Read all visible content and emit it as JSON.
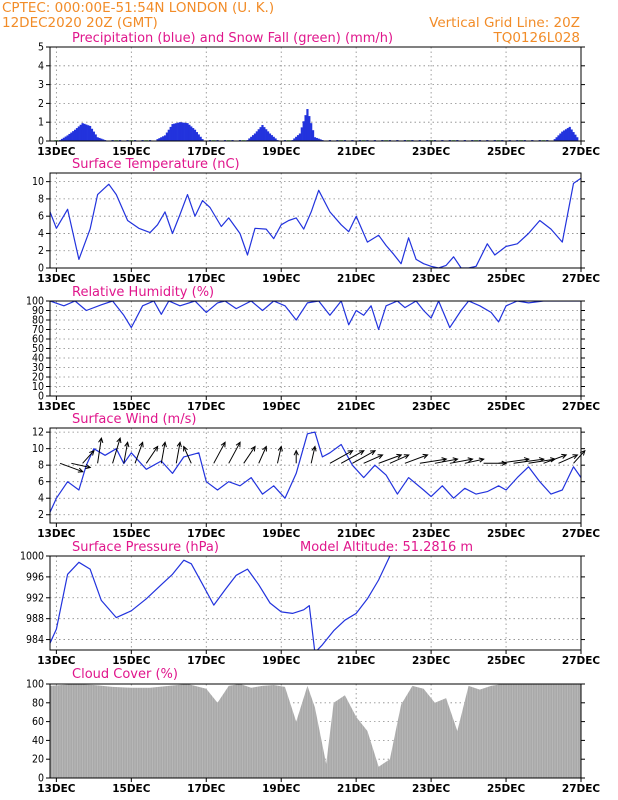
{
  "header": {
    "line1": "CPTEC:   000:00E-51:54N   LONDON (U. K.)",
    "line2": "12DEC2020 20Z (GMT)",
    "grid_note": "Vertical Grid Line: 20Z",
    "model_id": "TQ0126L028"
  },
  "colors": {
    "orange": "#f28c28",
    "magenta": "#e0168c",
    "blue": "#2233dd",
    "green": "#22aa22",
    "gray": "#a9a9a9"
  },
  "time_axis": {
    "start_day": 12.83,
    "end_day": 27.0,
    "ticks": [
      13,
      15,
      17,
      19,
      21,
      23,
      25,
      27
    ],
    "tick_labels": [
      "13DEC",
      "15DEC",
      "17DEC",
      "19DEC",
      "21DEC",
      "23DEC",
      "25DEC",
      "27DEC"
    ]
  },
  "chart_data": [
    {
      "type": "bar",
      "title": "Precipitation (blue) and Snow Fall (green) (mm/h)",
      "ylim": [
        0,
        5
      ],
      "yticks": [
        0,
        1,
        2,
        3,
        4,
        5
      ],
      "series": [
        {
          "name": "Precipitation",
          "color": "#2233dd",
          "x": [
            13.1,
            13.3,
            13.5,
            13.7,
            13.9,
            14.1,
            14.3,
            14.5,
            14.7,
            14.9,
            15.1,
            15.3,
            15.5,
            15.7,
            15.9,
            16.1,
            16.3,
            16.5,
            16.7,
            16.9,
            17.1,
            17.3,
            17.5,
            17.7,
            17.9,
            18.1,
            18.3,
            18.5,
            18.7,
            18.9,
            19.1,
            19.3,
            19.5,
            19.7,
            19.9,
            20.1,
            20.3,
            20.5,
            20.7,
            20.9,
            21.1,
            21.3,
            21.5,
            21.7,
            21.9,
            22.1,
            22.3,
            22.5,
            22.7,
            22.9,
            23.1,
            23.3,
            23.5,
            23.7,
            23.9,
            24.1,
            24.3,
            24.5,
            24.7,
            24.9,
            25.1,
            25.3,
            25.5,
            25.7,
            25.9,
            26.1,
            26.3,
            26.5,
            26.7,
            26.9
          ],
          "values": [
            0.05,
            0.3,
            0.6,
            0.95,
            0.8,
            0.2,
            0.05,
            0.05,
            0.05,
            0.05,
            0.05,
            0.05,
            0.05,
            0.1,
            0.3,
            0.9,
            1.0,
            0.95,
            0.6,
            0.1,
            0.05,
            0.05,
            0.05,
            0.05,
            0.05,
            0.05,
            0.4,
            0.85,
            0.4,
            0.05,
            0.05,
            0.05,
            0.4,
            1.7,
            0.2,
            0.05,
            0.05,
            0.05,
            0.05,
            0.05,
            0.05,
            0.05,
            0.05,
            0.05,
            0.05,
            0.05,
            0.05,
            0.05,
            0.05,
            0.05,
            0.05,
            0.05,
            0.05,
            0.05,
            0.05,
            0.05,
            0.05,
            0.05,
            0.05,
            0.05,
            0.05,
            0.05,
            0.05,
            0.05,
            0.05,
            0.05,
            0.1,
            0.5,
            0.75,
            0.2
          ]
        },
        {
          "name": "Snow Fall",
          "color": "#22aa22",
          "x": [
            13.0,
            13.4,
            14.2,
            14.6,
            15.0,
            15.4,
            16.0,
            17.2,
            17.6,
            18.0,
            18.8,
            19.2,
            20.0,
            20.6,
            21.2,
            21.8,
            22.4,
            23.0,
            23.6,
            24.2,
            24.8,
            25.4,
            26.0
          ],
          "values": [
            0.04,
            0.04,
            0.04,
            0.04,
            0.04,
            0.04,
            0.04,
            0.04,
            0.04,
            0.04,
            0.04,
            0.04,
            0.04,
            0.04,
            0.04,
            0.04,
            0.04,
            0.04,
            0.04,
            0.04,
            0.04,
            0.04,
            0.04
          ]
        }
      ]
    },
    {
      "type": "line",
      "title": "Surface Temperature (nC)",
      "ylim": [
        0,
        11
      ],
      "yticks": [
        0,
        2,
        4,
        6,
        8,
        10
      ],
      "x": [
        12.83,
        13.0,
        13.3,
        13.6,
        13.9,
        14.1,
        14.4,
        14.6,
        14.9,
        15.2,
        15.5,
        15.7,
        15.9,
        16.1,
        16.3,
        16.5,
        16.7,
        16.9,
        17.1,
        17.4,
        17.6,
        17.9,
        18.1,
        18.3,
        18.6,
        18.8,
        19.0,
        19.2,
        19.4,
        19.6,
        19.8,
        20.0,
        20.3,
        20.6,
        20.8,
        21.0,
        21.3,
        21.6,
        21.8,
        22.0,
        22.2,
        22.4,
        22.6,
        22.8,
        23.0,
        23.2,
        23.4,
        23.6,
        23.8,
        24.0,
        24.2,
        24.5,
        24.7,
        25.0,
        25.3,
        25.6,
        25.9,
        26.2,
        26.5,
        26.8,
        27.0
      ],
      "values": [
        6.5,
        4.6,
        6.8,
        1.0,
        4.5,
        8.5,
        9.7,
        8.5,
        5.5,
        4.6,
        4.1,
        5.0,
        6.5,
        4.0,
        6.2,
        8.5,
        6.0,
        7.8,
        7.0,
        4.8,
        5.8,
        4.0,
        1.5,
        4.6,
        4.5,
        3.4,
        5.0,
        5.5,
        5.8,
        4.5,
        6.5,
        9.0,
        6.5,
        5.0,
        4.2,
        6.0,
        3.0,
        3.8,
        2.6,
        1.6,
        0.5,
        3.5,
        1.0,
        0.5,
        0.2,
        0.0,
        0.3,
        1.3,
        0.0,
        0.0,
        0.2,
        2.8,
        1.5,
        2.5,
        2.8,
        4.0,
        5.5,
        4.5,
        3.0,
        9.8,
        10.4
      ],
      "color": "#2233dd"
    },
    {
      "type": "line",
      "title": "Relative Humidity (%)",
      "ylim": [
        0,
        100
      ],
      "yticks": [
        0,
        10,
        20,
        30,
        40,
        50,
        60,
        70,
        80,
        90,
        100
      ],
      "x": [
        12.83,
        13.2,
        13.5,
        13.8,
        14.2,
        14.5,
        14.8,
        15.0,
        15.3,
        15.6,
        15.8,
        16.0,
        16.3,
        16.7,
        17.0,
        17.3,
        17.5,
        17.8,
        18.2,
        18.5,
        18.8,
        19.1,
        19.4,
        19.7,
        20.0,
        20.3,
        20.6,
        20.8,
        21.0,
        21.2,
        21.4,
        21.6,
        21.8,
        22.1,
        22.3,
        22.6,
        22.8,
        23.0,
        23.2,
        23.5,
        23.8,
        24.0,
        24.3,
        24.6,
        24.8,
        25.0,
        25.3,
        25.6,
        26.0,
        26.5,
        27.0
      ],
      "values": [
        100,
        95,
        100,
        90,
        96,
        100,
        85,
        72,
        95,
        100,
        86,
        100,
        95,
        100,
        88,
        98,
        100,
        92,
        100,
        90,
        100,
        95,
        80,
        98,
        100,
        85,
        100,
        75,
        90,
        85,
        95,
        70,
        95,
        100,
        93,
        100,
        90,
        82,
        100,
        72,
        90,
        100,
        95,
        88,
        78,
        95,
        100,
        98,
        100,
        100,
        100
      ],
      "color": "#2233dd"
    },
    {
      "type": "line",
      "title": "Surface Wind (m/s)",
      "ylim": [
        1,
        12.5
      ],
      "yticks": [
        2,
        4,
        6,
        8,
        10,
        12
      ],
      "x": [
        12.83,
        13.0,
        13.3,
        13.6,
        13.8,
        14.0,
        14.3,
        14.6,
        14.8,
        15.0,
        15.4,
        15.8,
        16.1,
        16.4,
        16.8,
        17.0,
        17.3,
        17.6,
        17.9,
        18.2,
        18.5,
        18.8,
        19.1,
        19.4,
        19.7,
        19.9,
        20.1,
        20.3,
        20.6,
        20.9,
        21.2,
        21.5,
        21.8,
        22.1,
        22.4,
        22.8,
        23.0,
        23.3,
        23.6,
        23.9,
        24.2,
        24.5,
        24.8,
        25.0,
        25.3,
        25.6,
        25.9,
        26.2,
        26.5,
        26.8,
        27.0
      ],
      "values": [
        2.3,
        4.0,
        6.0,
        5.0,
        8.0,
        10.0,
        9.2,
        10.0,
        8.2,
        9.5,
        7.5,
        8.5,
        7.0,
        9.0,
        9.5,
        6.0,
        5.0,
        6.0,
        5.5,
        6.5,
        4.5,
        5.5,
        4.0,
        7.0,
        11.8,
        12.0,
        9.0,
        9.5,
        10.5,
        8.0,
        6.5,
        8.0,
        6.8,
        4.5,
        6.5,
        5.0,
        4.2,
        5.5,
        4.0,
        5.2,
        4.5,
        4.8,
        5.5,
        5.0,
        6.5,
        7.8,
        6.0,
        4.5,
        5.0,
        7.8,
        6.5
      ],
      "color": "#2233dd",
      "wind_vectors": {
        "x": [
          13.1,
          13.4,
          13.7,
          14.1,
          14.5,
          14.8,
          15.1,
          15.4,
          15.8,
          16.2,
          16.6,
          17.2,
          17.6,
          18.0,
          18.4,
          18.9,
          19.4,
          19.8,
          20.3,
          20.6,
          20.9,
          21.2,
          21.6,
          21.9,
          22.3,
          22.7,
          23.1,
          23.5,
          23.9,
          24.4,
          24.8,
          25.2,
          25.6,
          26.0,
          26.4,
          26.8
        ],
        "u": [
          6,
          5,
          3,
          1,
          2,
          1,
          2,
          3,
          1,
          1,
          -2,
          3,
          3,
          3,
          2,
          1,
          0,
          1,
          6,
          6,
          6,
          5,
          6,
          5,
          6,
          7,
          6,
          6,
          5,
          6,
          8,
          8,
          7,
          6,
          5,
          3
        ],
        "v": [
          -2,
          -1,
          3,
          6,
          6,
          5,
          5,
          4,
          5,
          5,
          4,
          5,
          5,
          4,
          4,
          4,
          3,
          4,
          3,
          3,
          3,
          2,
          2,
          2,
          2,
          1,
          1,
          1,
          1,
          0,
          1,
          1,
          1,
          2,
          2,
          3
        ]
      }
    },
    {
      "type": "line",
      "title": "Surface Pressure (hPa)",
      "annotation": "Model Altitude: 51.2816 m",
      "ylim": [
        982,
        1000
      ],
      "yticks": [
        984,
        988,
        992,
        996,
        1000
      ],
      "x": [
        12.83,
        13.0,
        13.3,
        13.6,
        13.9,
        14.2,
        14.6,
        15.0,
        15.4,
        15.8,
        16.1,
        16.4,
        16.6,
        16.9,
        17.2,
        17.5,
        17.8,
        18.1,
        18.4,
        18.7,
        19.0,
        19.3,
        19.6,
        19.75,
        19.9,
        20.1,
        20.4,
        20.7,
        21.0,
        21.3,
        21.6,
        21.9
      ],
      "values": [
        983.3,
        986,
        996.5,
        998.8,
        997.5,
        991.5,
        988.2,
        989.5,
        991.8,
        994.5,
        996.5,
        999.2,
        998.5,
        994.6,
        990.6,
        993.5,
        996.3,
        997.5,
        994.5,
        991,
        989.3,
        989.0,
        989.7,
        990.5,
        981.5,
        983,
        985.7,
        987.7,
        989,
        991.8,
        995.4,
        1000.0
      ],
      "color": "#2233dd"
    },
    {
      "type": "bar",
      "title": "Cloud Cover (%)",
      "ylim": [
        0,
        100
      ],
      "yticks": [
        0,
        20,
        40,
        60,
        80,
        100
      ],
      "x": [
        12.83,
        13.5,
        14.0,
        14.5,
        15.0,
        15.5,
        16.0,
        16.5,
        17.0,
        17.3,
        17.6,
        17.9,
        18.2,
        18.5,
        18.8,
        19.1,
        19.4,
        19.7,
        19.9,
        20.2,
        20.4,
        20.7,
        21.0,
        21.3,
        21.6,
        21.9,
        22.2,
        22.5,
        22.8,
        23.1,
        23.4,
        23.7,
        24.0,
        24.3,
        24.6,
        24.9,
        25.2,
        25.5,
        25.8,
        26.1,
        26.4,
        26.7,
        27.0
      ],
      "values": [
        98,
        100,
        99,
        97,
        96,
        96,
        98,
        100,
        95,
        80,
        98,
        100,
        96,
        98,
        99,
        97,
        60,
        98,
        75,
        15,
        80,
        88,
        65,
        50,
        12,
        20,
        78,
        98,
        95,
        80,
        85,
        50,
        98,
        94,
        98,
        100,
        100,
        100,
        100,
        100,
        100,
        100,
        100
      ],
      "color": "#a9a9a9"
    }
  ]
}
